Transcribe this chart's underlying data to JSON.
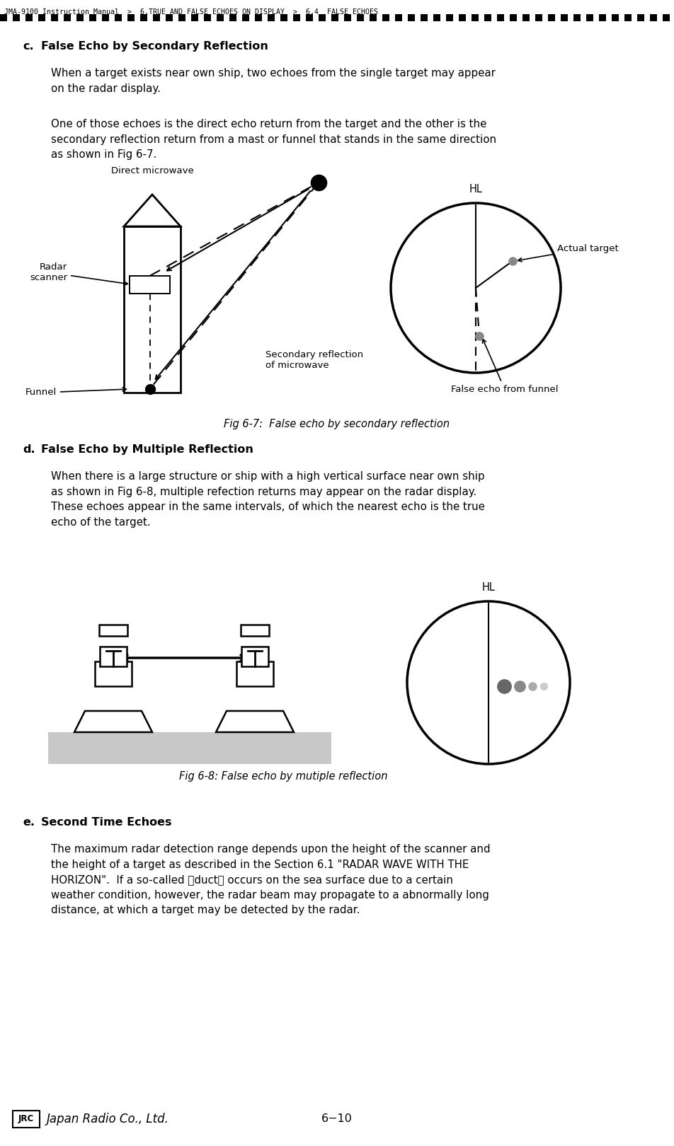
{
  "bg_color": "#ffffff",
  "header_text": "JMA-9100 Instruction Manual  >  6.TRUE AND FALSE ECHOES ON DISPLAY  >  6.4  FALSE ECHOES",
  "section_c_label": "c.",
  "section_c_title": "False Echo by Secondary Reflection",
  "section_c_para1": "When a target exists near own ship, two echoes from the single target may appear\non the radar display.",
  "section_c_para2": "One of those echoes is the direct echo return from the target and the other is the\nsecondary reflection return from a mast or funnel that stands in the same direction\nas shown in Fig 6-7.",
  "fig67_caption": "Fig 6-7:  False echo by secondary reflection",
  "section_d_label": "d.",
  "section_d_title": "False Echo by Multiple Reflection",
  "section_d_para": "When there is a large structure or ship with a high vertical surface near own ship\nas shown in Fig 6-8, multiple refection returns may appear on the radar display.\nThese echoes appear in the same intervals, of which the nearest echo is the true\necho of the target.",
  "fig68_caption": "Fig 6-8: False echo by mutiple reflection",
  "section_e_label": "e.",
  "section_e_title": "Second Time Echoes",
  "section_e_para1": "The maximum radar detection range depends upon the height of the scanner and",
  "section_e_para2": "the height of a target as described in the Section 6.1 \"RADAR WAVE WITH THE",
  "section_e_para3": "HORIZON\".  If a so-called 「duct」 occurs on the sea surface due to a certain",
  "section_e_para4": "weather condition, however, the radar beam may propagate to a abnormally long",
  "section_e_para5": "distance, at which a target may be detected by the radar.",
  "footer_page": "6−10"
}
